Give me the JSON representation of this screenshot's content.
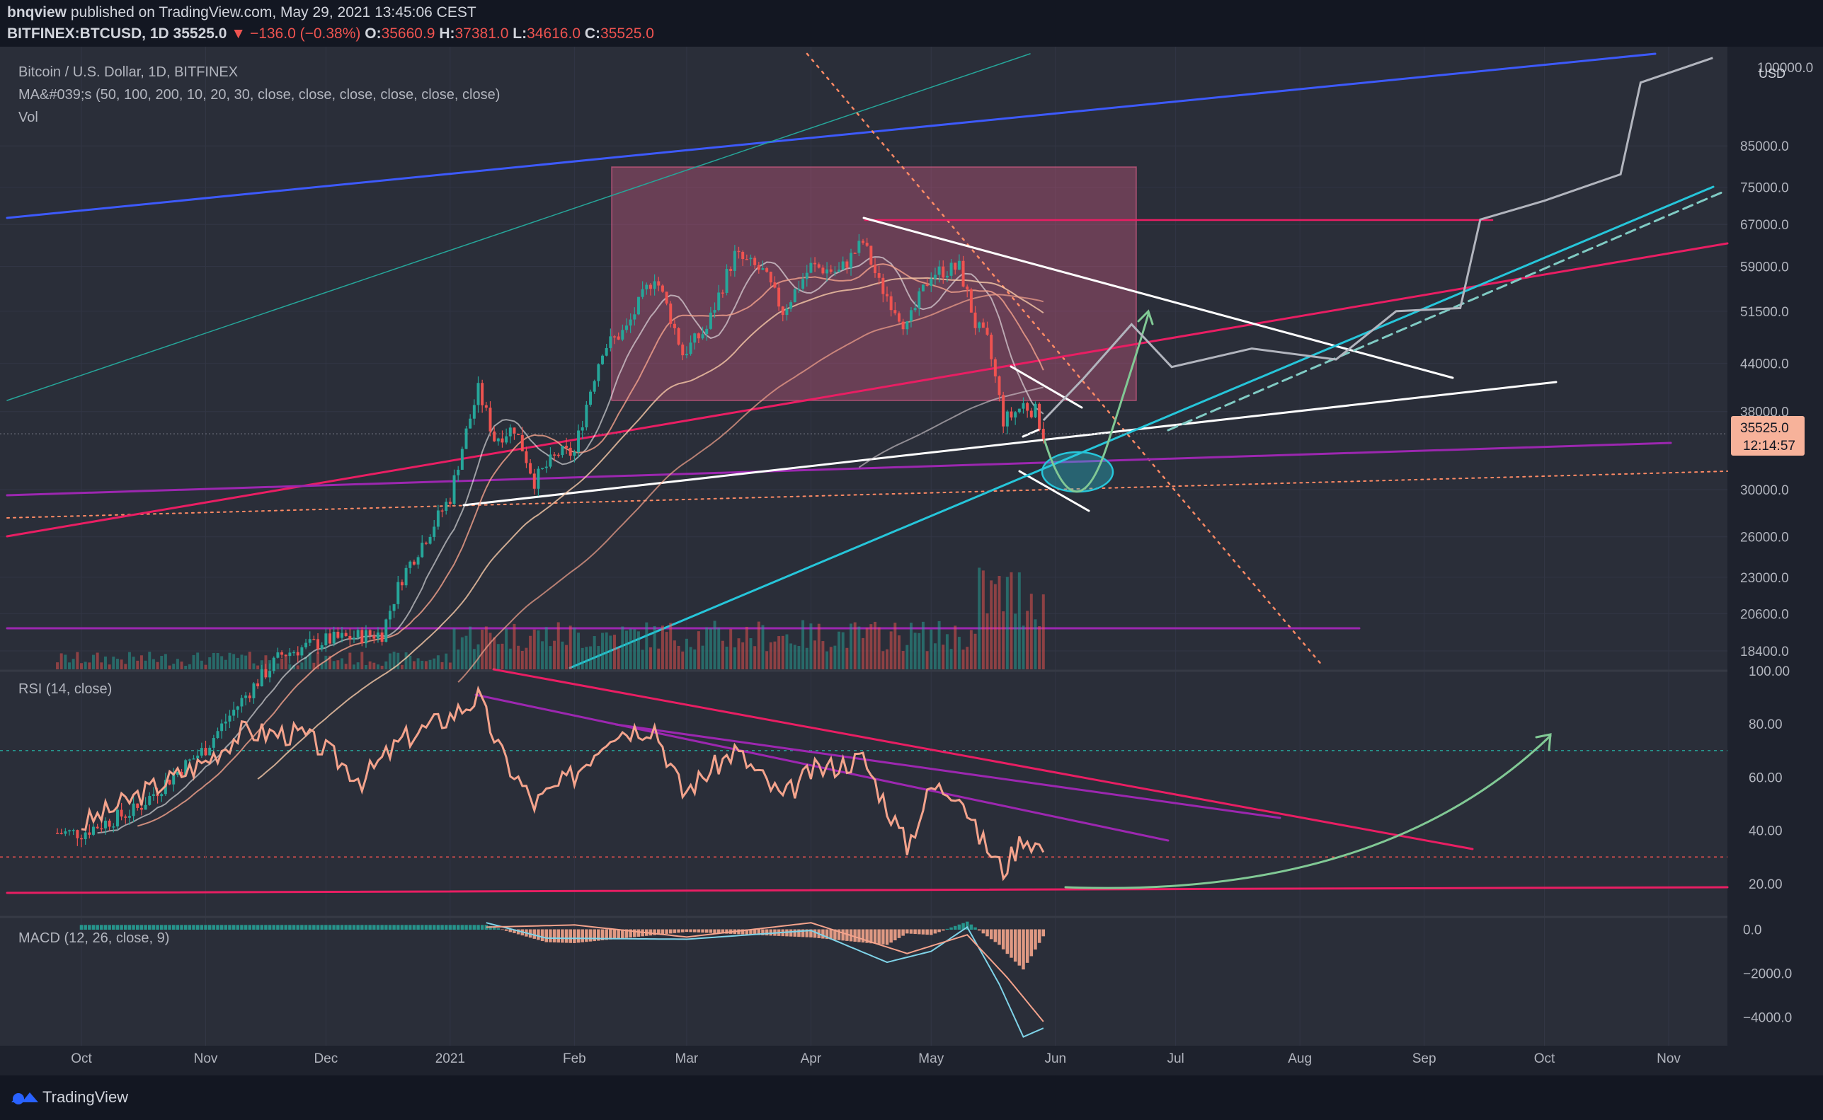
{
  "header": {
    "author": "bnqview",
    "published": " published on TradingView.com, May 29, 2021 13:45:06 CEST",
    "symbol": "BITFINEX:BTCUSD, 1D",
    "last": "35525.0",
    "change": "−136.0 (−0.38%)",
    "o_label": "O:",
    "o": "35660.9",
    "h_label": "H:",
    "h": "37381.0",
    "l_label": "L:",
    "l": "34616.0",
    "c_label": "C:",
    "c": "35525.0"
  },
  "legend": {
    "title": "Bitcoin / U.S. Dollar, 1D, BITFINEX",
    "ma": "MA&#039;s (50, 100, 200, 10, 20, 30, close, close, close, close, close, close)",
    "vol": "Vol",
    "rsi": "RSI (14, close)",
    "macd": "MACD (12, 26, close, 9)"
  },
  "badges": {
    "price": "35525.0",
    "countdown": "12:14:57",
    "top": "100000.0",
    "currency": "USD"
  },
  "footer": {
    "brand": "TradingView"
  },
  "chart_data": {
    "type": "line",
    "colors": {
      "up": "#26a69a",
      "down": "#ef5350",
      "rsi": "#f4a38c",
      "macd": "#7fd3e8",
      "signal": "#f4a38c",
      "blue_line": "#3d5afe",
      "pink_line": "#e91e63",
      "teal_line": "#26c6da",
      "purple_line": "#9c27b0",
      "projection": "#b2b5be",
      "zone": "#f06292",
      "arrow": "#81c995"
    },
    "x_axis": {
      "ticks": [
        "Oct",
        "Nov",
        "Dec",
        "2021",
        "Feb",
        "Mar",
        "Apr",
        "May",
        "Jun",
        "Jul",
        "Aug",
        "Sep",
        "Oct",
        "Nov"
      ]
    },
    "price_axis": {
      "scale": "log",
      "ticks": [
        "85000.0",
        "75000.0",
        "67000.0",
        "59000.0",
        "51500.0",
        "44000.0",
        "38000.0",
        "30000.0",
        "26000.0",
        "23000.0",
        "20600.0",
        "18400.0"
      ],
      "tick_values": [
        85000,
        75000,
        67000,
        59000,
        51500,
        44000,
        38000,
        30000,
        26000,
        23000,
        20600,
        18400
      ],
      "range": [
        17400,
        110000
      ]
    },
    "price_series": [
      [
        "2020-10-01",
        10600
      ],
      [
        "2020-10-15",
        11400
      ],
      [
        "2020-11-01",
        13700
      ],
      [
        "2020-11-20",
        18200
      ],
      [
        "2020-12-01",
        19000
      ],
      [
        "2020-12-15",
        19400
      ],
      [
        "2020-12-20",
        23000
      ],
      [
        "2020-12-27",
        26500
      ],
      [
        "2021-01-01",
        29300
      ],
      [
        "2021-01-08",
        40500
      ],
      [
        "2021-01-12",
        35000
      ],
      [
        "2021-01-17",
        36200
      ],
      [
        "2021-01-22",
        30800
      ],
      [
        "2021-01-28",
        33500
      ],
      [
        "2021-02-01",
        33500
      ],
      [
        "2021-02-08",
        46000
      ],
      [
        "2021-02-14",
        48800
      ],
      [
        "2021-02-21",
        57500
      ],
      [
        "2021-02-28",
        45300
      ],
      [
        "2021-03-06",
        48800
      ],
      [
        "2021-03-13",
        61000
      ],
      [
        "2021-03-20",
        58000
      ],
      [
        "2021-03-25",
        51500
      ],
      [
        "2021-04-01",
        59000
      ],
      [
        "2021-04-08",
        58000
      ],
      [
        "2021-04-14",
        63500
      ],
      [
        "2021-04-18",
        56000
      ],
      [
        "2021-04-25",
        49000
      ],
      [
        "2021-05-01",
        57800
      ],
      [
        "2021-05-08",
        58800
      ],
      [
        "2021-05-12",
        49500
      ],
      [
        "2021-05-15",
        47000
      ],
      [
        "2021-05-19",
        37000
      ],
      [
        "2021-05-21",
        37500
      ],
      [
        "2021-05-24",
        38800
      ],
      [
        "2021-05-27",
        38000
      ],
      [
        "2021-05-29",
        35525
      ]
    ],
    "projection": [
      [
        "2021-05-29",
        37000
      ],
      [
        "2021-06-08",
        42000
      ],
      [
        "2021-06-20",
        49500
      ],
      [
        "2021-06-30",
        43500
      ],
      [
        "2021-07-20",
        46000
      ],
      [
        "2021-08-10",
        44500
      ],
      [
        "2021-08-25",
        51500
      ],
      [
        "2021-09-10",
        52000
      ],
      [
        "2021-09-15",
        68000
      ],
      [
        "2021-10-01",
        72000
      ],
      [
        "2021-10-20",
        78000
      ],
      [
        "2021-10-25",
        103000
      ],
      [
        "2021-11-12",
        111000
      ]
    ],
    "rsi": {
      "axis_ticks": [
        "100.00",
        "80.00",
        "60.00",
        "40.00",
        "20.00"
      ],
      "tick_values": [
        100,
        80,
        60,
        40,
        20
      ],
      "range": [
        8,
        100
      ],
      "levels": [
        70,
        30
      ],
      "series": [
        [
          "2020-10-01",
          42
        ],
        [
          "2020-10-15",
          53
        ],
        [
          "2020-11-01",
          66
        ],
        [
          "2020-11-10",
          77
        ],
        [
          "2020-11-25",
          76
        ],
        [
          "2020-12-01",
          70
        ],
        [
          "2020-12-10",
          59
        ],
        [
          "2020-12-20",
          74
        ],
        [
          "2021-01-01",
          83
        ],
        [
          "2021-01-08",
          90
        ],
        [
          "2021-01-14",
          68
        ],
        [
          "2021-01-22",
          50
        ],
        [
          "2021-02-01",
          61
        ],
        [
          "2021-02-10",
          77
        ],
        [
          "2021-02-21",
          79
        ],
        [
          "2021-02-28",
          54
        ],
        [
          "2021-03-13",
          70
        ],
        [
          "2021-03-25",
          52
        ],
        [
          "2021-04-01",
          62
        ],
        [
          "2021-04-14",
          67
        ],
        [
          "2021-04-25",
          34
        ],
        [
          "2021-05-01",
          56
        ],
        [
          "2021-05-08",
          55
        ],
        [
          "2021-05-12",
          40
        ],
        [
          "2021-05-19",
          25
        ],
        [
          "2021-05-24",
          38
        ],
        [
          "2021-05-29",
          33
        ]
      ]
    },
    "macd": {
      "axis_ticks": [
        "0.0",
        "−2000.0",
        "−4000.0"
      ],
      "tick_values": [
        0,
        -2000,
        -4000
      ],
      "range": [
        -5300,
        500
      ],
      "macd_line": [
        [
          "2021-01-10",
          300
        ],
        [
          "2021-01-25",
          -400
        ],
        [
          "2021-03-01",
          -450
        ],
        [
          "2021-04-01",
          -50
        ],
        [
          "2021-04-20",
          -1500
        ],
        [
          "2021-05-01",
          -1000
        ],
        [
          "2021-05-10",
          100
        ],
        [
          "2021-05-18",
          -2500
        ],
        [
          "2021-05-24",
          -4900
        ],
        [
          "2021-05-29",
          -4500
        ]
      ],
      "signal_line": [
        [
          "2021-01-10",
          100
        ],
        [
          "2021-02-01",
          200
        ],
        [
          "2021-03-01",
          -350
        ],
        [
          "2021-04-01",
          300
        ],
        [
          "2021-04-25",
          -1100
        ],
        [
          "2021-05-10",
          -250
        ],
        [
          "2021-05-20",
          -2200
        ],
        [
          "2021-05-29",
          -4200
        ]
      ]
    }
  }
}
